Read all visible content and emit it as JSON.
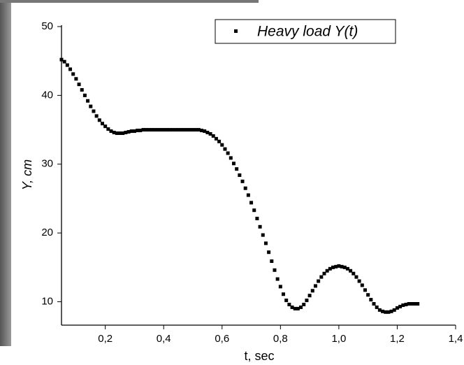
{
  "chart_data": {
    "type": "scatter",
    "xlabel": "t, sec",
    "ylabel": "Y, cm",
    "series": [
      {
        "name": "Heavy load Y(t)",
        "color": "#000000",
        "x": [
          0.05,
          0.06,
          0.07,
          0.08,
          0.09,
          0.1,
          0.11,
          0.12,
          0.13,
          0.14,
          0.15,
          0.16,
          0.17,
          0.18,
          0.19,
          0.2,
          0.21,
          0.22,
          0.23,
          0.24,
          0.25,
          0.26,
          0.27,
          0.28,
          0.29,
          0.3,
          0.31,
          0.32,
          0.33,
          0.34,
          0.35,
          0.36,
          0.37,
          0.38,
          0.39,
          0.4,
          0.41,
          0.42,
          0.43,
          0.44,
          0.45,
          0.46,
          0.47,
          0.48,
          0.49,
          0.5,
          0.51,
          0.52,
          0.53,
          0.54,
          0.55,
          0.56,
          0.57,
          0.58,
          0.59,
          0.6,
          0.61,
          0.62,
          0.63,
          0.64,
          0.65,
          0.66,
          0.67,
          0.68,
          0.69,
          0.7,
          0.71,
          0.72,
          0.73,
          0.74,
          0.75,
          0.76,
          0.77,
          0.78,
          0.79,
          0.8,
          0.81,
          0.82,
          0.83,
          0.84,
          0.85,
          0.86,
          0.87,
          0.88,
          0.89,
          0.9,
          0.91,
          0.92,
          0.93,
          0.94,
          0.95,
          0.96,
          0.97,
          0.98,
          0.99,
          1.0,
          1.01,
          1.02,
          1.03,
          1.04,
          1.05,
          1.06,
          1.07,
          1.08,
          1.09,
          1.1,
          1.11,
          1.12,
          1.13,
          1.14,
          1.15,
          1.16,
          1.17,
          1.18,
          1.19,
          1.2,
          1.21,
          1.22,
          1.23,
          1.24,
          1.25,
          1.26,
          1.27
        ],
        "values": [
          45.2,
          44.9,
          44.4,
          43.8,
          43.1,
          42.4,
          41.6,
          40.8,
          40.0,
          39.2,
          38.4,
          37.7,
          37.0,
          36.4,
          35.9,
          35.5,
          35.1,
          34.8,
          34.6,
          34.5,
          34.5,
          34.5,
          34.6,
          34.7,
          34.8,
          34.8,
          34.9,
          34.9,
          35.0,
          35.0,
          35.0,
          35.0,
          35.0,
          35.0,
          35.0,
          35.0,
          35.0,
          35.0,
          35.0,
          35.0,
          35.0,
          35.0,
          35.0,
          35.0,
          35.0,
          35.0,
          35.0,
          35.0,
          34.9,
          34.8,
          34.6,
          34.4,
          34.1,
          33.7,
          33.3,
          32.8,
          32.2,
          31.6,
          30.9,
          30.1,
          29.3,
          28.4,
          27.5,
          26.5,
          25.5,
          24.4,
          23.3,
          22.1,
          20.9,
          19.7,
          18.5,
          17.2,
          15.9,
          14.6,
          13.3,
          12.2,
          11.1,
          10.2,
          9.6,
          9.2,
          9.0,
          9.0,
          9.2,
          9.6,
          10.2,
          10.9,
          11.6,
          12.3,
          13.0,
          13.6,
          14.1,
          14.5,
          14.8,
          15.0,
          15.1,
          15.2,
          15.1,
          15.0,
          14.8,
          14.5,
          14.1,
          13.6,
          13.0,
          12.4,
          11.7,
          11.0,
          10.3,
          9.7,
          9.2,
          8.8,
          8.6,
          8.5,
          8.5,
          8.6,
          8.8,
          9.1,
          9.3,
          9.5,
          9.6,
          9.7,
          9.7,
          9.7,
          9.7
        ]
      }
    ],
    "xlim": [
      0.05,
      1.4
    ],
    "xticks": [
      {
        "value": 0.2,
        "label": "0,2"
      },
      {
        "value": 0.4,
        "label": "0,4"
      },
      {
        "value": 0.6,
        "label": "0,6"
      },
      {
        "value": 0.8,
        "label": "0,8"
      },
      {
        "value": 1.0,
        "label": "1,0"
      },
      {
        "value": 1.2,
        "label": "1,2"
      },
      {
        "value": 1.4,
        "label": "1,4"
      }
    ],
    "ylim": [
      6.6,
      50
    ],
    "yticks": [
      10,
      20,
      30,
      40,
      50
    ],
    "legend": "top-right"
  }
}
